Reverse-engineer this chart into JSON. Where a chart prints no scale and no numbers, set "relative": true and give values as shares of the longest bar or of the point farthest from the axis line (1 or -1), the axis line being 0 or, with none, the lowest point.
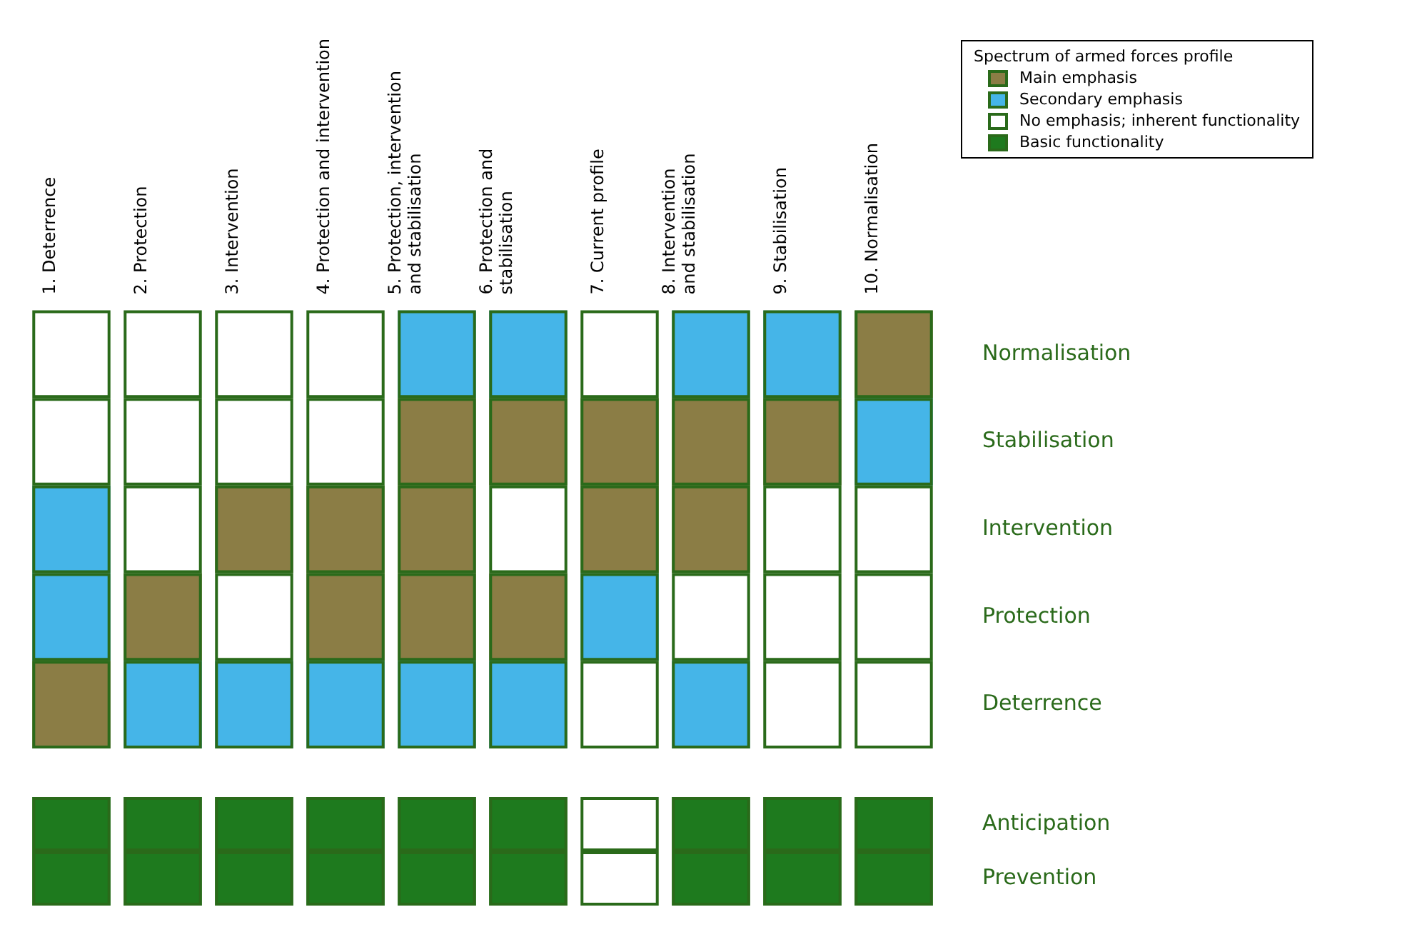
{
  "chart_data": [
    {
      "type": "bar",
      "stacked": true,
      "relative": true,
      "grid": false,
      "annotations": [
        "Spectrum of armed forces profile",
        "Main emphasis",
        "Secondary emphasis",
        "No emphasis; inherent functionality",
        "Basic functionality"
      ],
      "categories": [
        "1. Deterrence",
        "2. Protection",
        "3. Intervention",
        "4. Protection and intervention",
        "5. Protection, intervention and stabilisation",
        "6. Protection and stabilisation",
        "7. Current profile",
        "8. Intervention and stabilisation",
        "9. Stabilisation",
        "10. Normalisation"
      ],
      "series": [
        {
          "name": "Deterrence",
          "values": [
            0.2,
            0.2,
            0.2,
            0.2,
            0.2,
            0.2,
            0.2,
            0.2,
            0.2,
            0.2
          ],
          "colors": [
            "#8b7d45",
            "#45b5e8",
            "#45b5e8",
            "#45b5e8",
            "#45b5e8",
            "#45b5e8",
            "#ffffff",
            "#45b5e8",
            "#ffffff",
            "#ffffff"
          ]
        },
        {
          "name": "Protection",
          "values": [
            0.2,
            0.2,
            0.2,
            0.2,
            0.2,
            0.2,
            0.2,
            0.2,
            0.2,
            0.2
          ],
          "colors": [
            "#45b5e8",
            "#8b7d45",
            "#ffffff",
            "#8b7d45",
            "#8b7d45",
            "#8b7d45",
            "#45b5e8",
            "#ffffff",
            "#ffffff",
            "#ffffff"
          ]
        },
        {
          "name": "Intervention",
          "values": [
            0.2,
            0.2,
            0.2,
            0.2,
            0.2,
            0.2,
            0.2,
            0.2,
            0.2,
            0.2
          ],
          "colors": [
            "#45b5e8",
            "#ffffff",
            "#8b7d45",
            "#8b7d45",
            "#8b7d45",
            "#ffffff",
            "#8b7d45",
            "#8b7d45",
            "#ffffff",
            "#ffffff"
          ]
        },
        {
          "name": "Stabilisation",
          "values": [
            0.2,
            0.2,
            0.2,
            0.2,
            0.2,
            0.2,
            0.2,
            0.2,
            0.2,
            0.2
          ],
          "colors": [
            "#ffffff",
            "#ffffff",
            "#ffffff",
            "#ffffff",
            "#8b7d45",
            "#8b7d45",
            "#8b7d45",
            "#8b7d45",
            "#8b7d45",
            "#45b5e8"
          ]
        },
        {
          "name": "Normalisation",
          "values": [
            0.2,
            0.2,
            0.2,
            0.2,
            0.2,
            0.2,
            0.2,
            0.2,
            0.2,
            0.2
          ],
          "colors": [
            "#ffffff",
            "#ffffff",
            "#ffffff",
            "#ffffff",
            "#45b5e8",
            "#45b5e8",
            "#ffffff",
            "#45b5e8",
            "#45b5e8",
            "#8b7d45"
          ]
        }
      ]
    },
    {
      "type": "bar",
      "stacked": true,
      "relative": true,
      "grid": false,
      "categories": [
        null,
        null,
        null,
        null,
        null,
        null,
        null,
        null,
        null,
        null
      ],
      "series": [
        {
          "name": "Prevention",
          "values": [
            0.5,
            0.5,
            0.5,
            0.5,
            0.5,
            0.5,
            0.5,
            0.5,
            0.5,
            0.5
          ],
          "colors": [
            "#1e7a1e",
            "#1e7a1e",
            "#1e7a1e",
            "#1e7a1e",
            "#1e7a1e",
            "#1e7a1e",
            "#ffffff",
            "#1e7a1e",
            "#1e7a1e",
            "#1e7a1e"
          ]
        },
        {
          "name": "Anticipation",
          "values": [
            0.5,
            0.5,
            0.5,
            0.5,
            0.5,
            0.5,
            0.5,
            0.5,
            0.5,
            0.5
          ],
          "colors": [
            "#1e7a1e",
            "#1e7a1e",
            "#1e7a1e",
            "#1e7a1e",
            "#1e7a1e",
            "#1e7a1e",
            "#ffffff",
            "#1e7a1e",
            "#1e7a1e",
            "#1e7a1e"
          ]
        }
      ]
    }
  ]
}
